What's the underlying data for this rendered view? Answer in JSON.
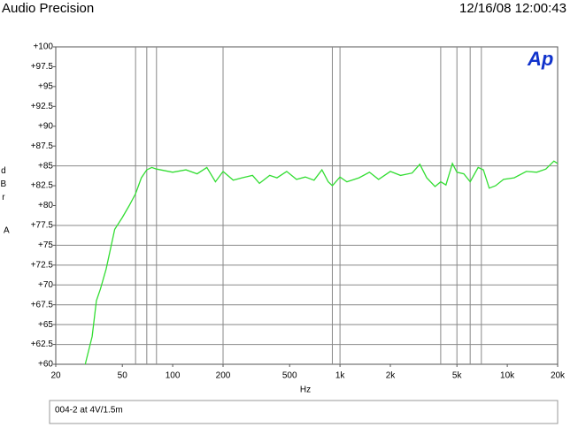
{
  "header": {
    "left": "Audio Precision",
    "right": "12/16/08 12:00:43"
  },
  "logo": "Ap",
  "footer": "004-2  at 4V/1.5m",
  "chart_data": {
    "type": "line",
    "y_label": "dBr",
    "y_label_2": "A",
    "x_label": "Hz",
    "x_scale": "log",
    "xlim": [
      20,
      20000
    ],
    "xticks": [
      20,
      50,
      100,
      200,
      500,
      {
        "value": 1000,
        "label": "1k"
      },
      {
        "value": 2000,
        "label": "2k"
      },
      {
        "value": 5000,
        "label": "5k"
      },
      {
        "value": 10000,
        "label": "10k"
      },
      {
        "value": 20000,
        "label": "20k"
      }
    ],
    "x_grid": [
      60,
      70,
      80,
      200,
      900,
      1000,
      4000,
      5000,
      6000,
      7000
    ],
    "ylim": [
      60,
      100
    ],
    "yticks": [
      {
        "value": 60,
        "label": "+60"
      },
      {
        "value": 62.5,
        "label": "+62.5"
      },
      {
        "value": 65,
        "label": "+65"
      },
      {
        "value": 67.5,
        "label": "+67.5"
      },
      {
        "value": 70,
        "label": "+70"
      },
      {
        "value": 72.5,
        "label": "+72.5"
      },
      {
        "value": 75,
        "label": "+75"
      },
      {
        "value": 77.5,
        "label": "+77.5"
      },
      {
        "value": 80,
        "label": "+80"
      },
      {
        "value": 82.5,
        "label": "+82.5"
      },
      {
        "value": 85,
        "label": "+85"
      },
      {
        "value": 87.5,
        "label": "+87.5"
      },
      {
        "value": 90,
        "label": "+90"
      },
      {
        "value": 92.5,
        "label": "+92.5"
      },
      {
        "value": 95,
        "label": "+95"
      },
      {
        "value": 97.5,
        "label": "+97.5"
      },
      {
        "value": 100,
        "label": "+100"
      }
    ],
    "y_grid": [
      62.5,
      65,
      67.5,
      70,
      72.5,
      75,
      77.5,
      85
    ],
    "x": [
      30,
      33,
      35,
      37,
      40,
      45,
      50,
      55,
      60,
      65,
      70,
      75,
      80,
      100,
      120,
      140,
      160,
      180,
      200,
      230,
      260,
      300,
      330,
      380,
      420,
      480,
      550,
      620,
      700,
      780,
      850,
      900,
      1000,
      1100,
      1300,
      1500,
      1700,
      2000,
      2300,
      2700,
      3000,
      3300,
      3700,
      4000,
      4300,
      4700,
      5000,
      5500,
      6000,
      6700,
      7200,
      7800,
      8500,
      9500,
      11000,
      13000,
      15000,
      17000,
      19000,
      20000
    ],
    "series": [
      {
        "color": "#33dd33",
        "values": [
          60,
          63.5,
          68,
          69.5,
          72,
          77,
          78.5,
          80,
          81.5,
          83.5,
          84.5,
          84.8,
          84.6,
          84.2,
          84.5,
          84,
          84.8,
          83,
          84.3,
          83.2,
          83.5,
          83.8,
          82.8,
          83.8,
          83.5,
          84.3,
          83.3,
          83.6,
          83.2,
          84.5,
          83,
          82.5,
          83.6,
          83,
          83.5,
          84.2,
          83.3,
          84.3,
          83.8,
          84.1,
          85.2,
          83.5,
          82.4,
          83,
          82.6,
          85.3,
          84.2,
          84,
          83,
          84.8,
          84.5,
          82.2,
          82.5,
          83.3,
          83.5,
          84.3,
          84.2,
          84.6,
          85.6,
          85.3
        ]
      }
    ]
  }
}
